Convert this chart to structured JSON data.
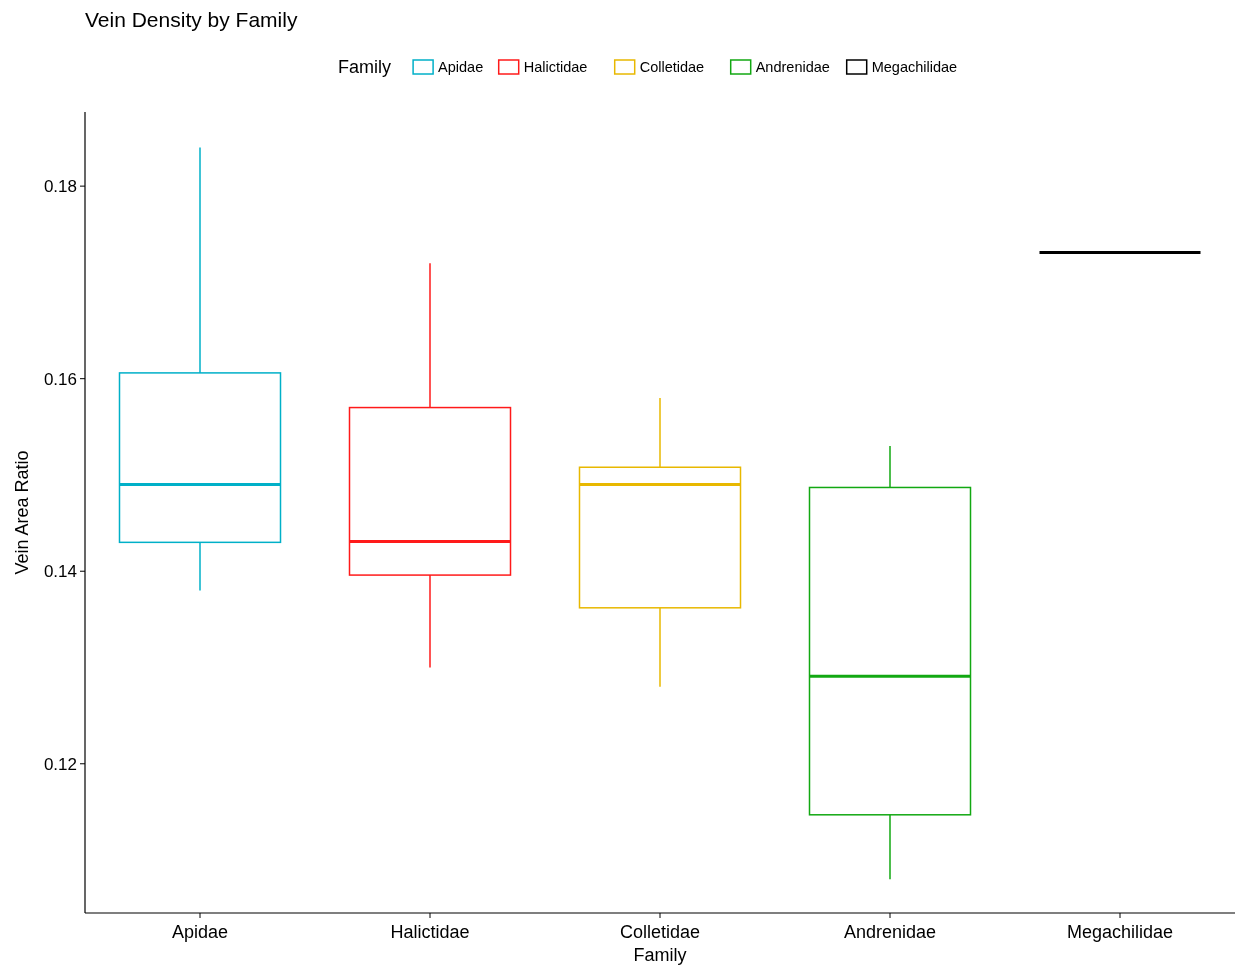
{
  "chart_data": {
    "type": "box",
    "title": "Vein Density by Family",
    "xlabel": "Family",
    "ylabel": "Vein Area Ratio",
    "legend_title": "Family",
    "legend": "top",
    "grid": false,
    "categories": [
      "Apidae",
      "Halictidae",
      "Colletidae",
      "Andrenidae",
      "Megachilidae"
    ],
    "series": [
      {
        "name": "Apidae",
        "color": "#00b0c8",
        "boxes": [
          {
            "low": 0.138,
            "q1": 0.143,
            "median": 0.149,
            "q3": 0.1606,
            "high": 0.184
          },
          null,
          null,
          null,
          null
        ]
      },
      {
        "name": "Halictidae",
        "color": "#ff1a1a",
        "boxes": [
          null,
          {
            "low": 0.13,
            "q1": 0.1396,
            "median": 0.1431,
            "q3": 0.157,
            "high": 0.172
          },
          null,
          null,
          null
        ]
      },
      {
        "name": "Colletidae",
        "color": "#e8b800",
        "boxes": [
          null,
          null,
          {
            "low": 0.128,
            "q1": 0.1362,
            "median": 0.149,
            "q3": 0.1508,
            "high": 0.158
          },
          null,
          null
        ]
      },
      {
        "name": "Andrenidae",
        "color": "#12a812",
        "boxes": [
          null,
          null,
          null,
          {
            "low": 0.108,
            "q1": 0.1147,
            "median": 0.1291,
            "q3": 0.1487,
            "high": 0.153
          },
          null
        ]
      },
      {
        "name": "Megachilidae",
        "color": "#000000",
        "boxes": [
          null,
          null,
          null,
          null,
          {
            "low": 0.1731,
            "q1": 0.1731,
            "median": 0.1731,
            "q3": 0.1731,
            "high": 0.1731
          }
        ]
      }
    ],
    "ylim": [
      0.1045,
      0.1877
    ],
    "yticks": [
      {
        "value": 0.12,
        "label": "0.12"
      },
      {
        "value": 0.14,
        "label": "0.14"
      },
      {
        "value": 0.16,
        "label": "0.16"
      },
      {
        "value": 0.18,
        "label": "0.18"
      }
    ]
  }
}
